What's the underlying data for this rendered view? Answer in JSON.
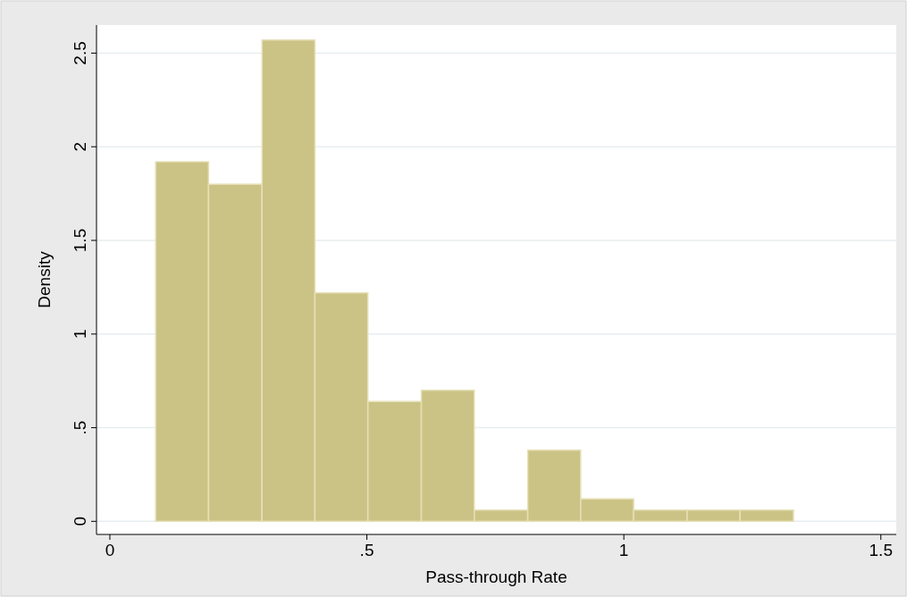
{
  "chart_data": {
    "type": "histogram",
    "xlabel": "Pass-through Rate",
    "ylabel": "Density",
    "bins": [
      0.089,
      0.192,
      0.296,
      0.399,
      0.502,
      0.606,
      0.709,
      0.813,
      0.916,
      1.019,
      1.123,
      1.226,
      1.33
    ],
    "values": [
      1.92,
      1.8,
      2.57,
      1.22,
      0.64,
      0.7,
      0.06,
      0.38,
      0.12,
      0.06,
      0.06,
      0.06
    ],
    "color": "#cbc385",
    "xlim": [
      -0.026,
      1.53
    ],
    "xticks": [
      0,
      {
        "value": 0.5,
        "label": ".5"
      },
      1,
      1.5
    ],
    "ylim": [
      -0.07,
      2.65
    ],
    "yticks": [
      0,
      {
        "value": 0.5,
        "label": ".5"
      },
      1,
      1.5,
      2,
      2.5
    ],
    "grid": "y"
  }
}
